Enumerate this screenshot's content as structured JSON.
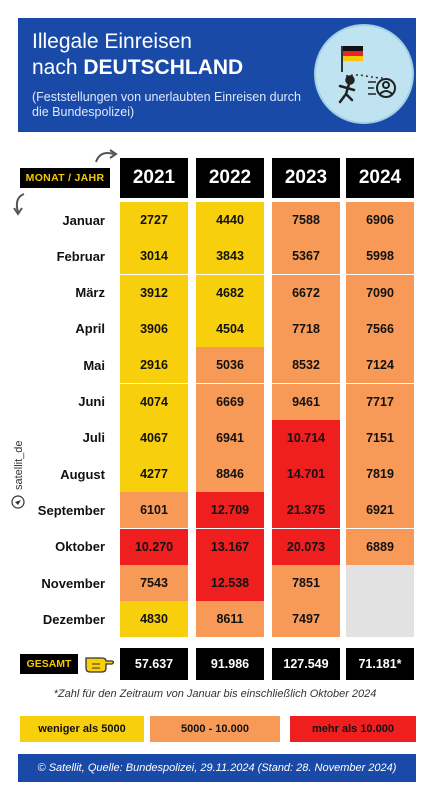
{
  "header": {
    "title_line1": "Illegale Einreisen",
    "title_line2_prefix": "nach ",
    "title_line2_bold": "DEUTSCHLAND",
    "subtitle": "(Feststellungen von unerlaubten Einreisen durch die Bundespolizei)"
  },
  "side_credit": "satellit_de",
  "chart_data": {
    "type": "table",
    "row_header_label": "MONAT / JAHR",
    "columns": [
      "2021",
      "2022",
      "2023",
      "2024"
    ],
    "rows": [
      {
        "month": "Januar",
        "values": [
          "2727",
          "4440",
          "7588",
          "6906"
        ]
      },
      {
        "month": "Februar",
        "values": [
          "3014",
          "3843",
          "5367",
          "5998"
        ]
      },
      {
        "month": "März",
        "values": [
          "3912",
          "4682",
          "6672",
          "7090"
        ]
      },
      {
        "month": "April",
        "values": [
          "3906",
          "4504",
          "7718",
          "7566"
        ]
      },
      {
        "month": "Mai",
        "values": [
          "2916",
          "5036",
          "8532",
          "7124"
        ]
      },
      {
        "month": "Juni",
        "values": [
          "4074",
          "6669",
          "9461",
          "7717"
        ]
      },
      {
        "month": "Juli",
        "values": [
          "4067",
          "6941",
          "10.714",
          "7151"
        ]
      },
      {
        "month": "August",
        "values": [
          "4277",
          "8846",
          "14.701",
          "7819"
        ]
      },
      {
        "month": "September",
        "values": [
          "6101",
          "12.709",
          "21.375",
          "6921"
        ]
      },
      {
        "month": "Oktober",
        "values": [
          "10.270",
          "13.167",
          "20.073",
          "6889"
        ]
      },
      {
        "month": "November",
        "values": [
          "7543",
          "12.538",
          "7851",
          ""
        ]
      },
      {
        "month": "Dezember",
        "values": [
          "4830",
          "8611",
          "7497",
          ""
        ]
      }
    ],
    "total_label": "GESAMT",
    "totals": [
      "57.637",
      "91.986",
      "127.549",
      "71.181*"
    ],
    "footnote": "*Zahl für den Zeitraum von Januar bis einschließlich Oktober 2024",
    "legend": [
      {
        "label": "weniger als 5000",
        "color": "#f8cf0d"
      },
      {
        "label": "5000 - 10.000",
        "color": "#f79a58"
      },
      {
        "label": "mehr als 10.000",
        "color": "#ef1f20"
      }
    ]
  },
  "footer": "© Satellit, Quelle:  Bundespolizei, 29.11.2024 (Stand: 28. November 2024)",
  "colors": {
    "header_bg": "#1a4aa8",
    "low": "#f8cf0d",
    "mid": "#f79a58",
    "high": "#ef1f20",
    "empty": "#e2e2e2"
  },
  "icons": [
    "germany-flag-icon",
    "running-person-icon",
    "person-circle-icon",
    "pointing-hand-icon",
    "curved-arrow-icon",
    "location-icon"
  ]
}
